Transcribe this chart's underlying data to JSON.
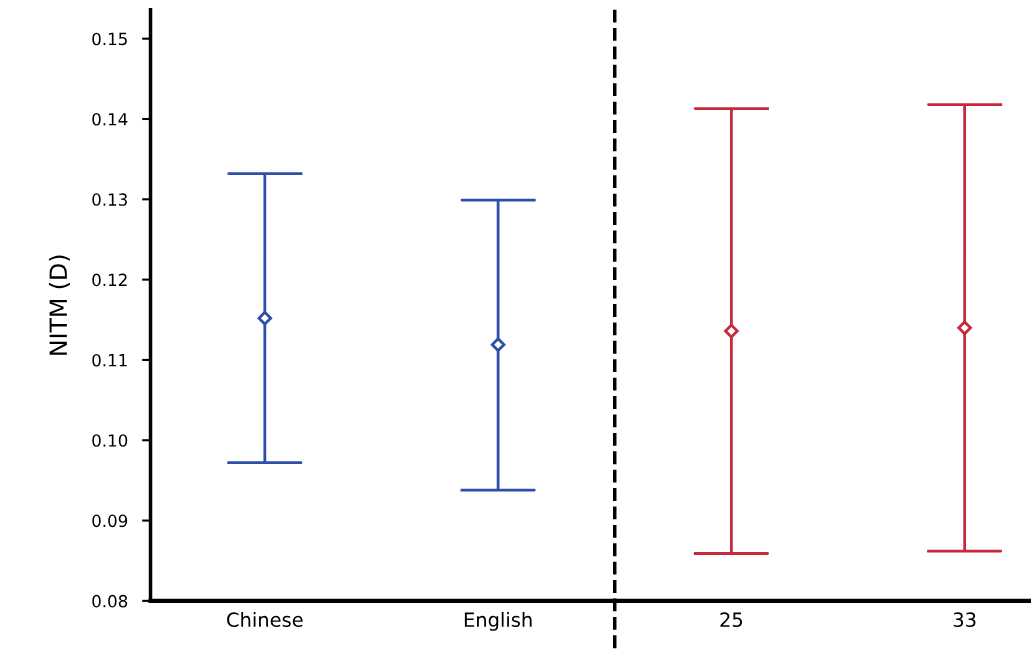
{
  "chart_data": {
    "type": "scatter",
    "ylabel": "NITM (D)",
    "categories": [
      "Chinese",
      "English",
      "25",
      "33"
    ],
    "values": [
      0.1152,
      0.1119,
      0.1136,
      0.114
    ],
    "colors": [
      "#2e4fa8",
      "#2e4fa8",
      "#c8283c",
      "#c8283c"
    ],
    "errors": [
      [
        0.0972,
        0.1332
      ],
      [
        0.0938,
        0.1299
      ],
      [
        0.0859,
        0.1413
      ],
      [
        0.0862,
        0.1418
      ]
    ],
    "ylim": [
      0.08,
      0.1536
    ],
    "yticks": [
      0.08,
      0.09,
      {
        "value": 0.1,
        "label": "0.10"
      },
      0.11,
      0.12,
      0.13,
      0.14,
      0.15
    ],
    "marker": "diamond"
  }
}
